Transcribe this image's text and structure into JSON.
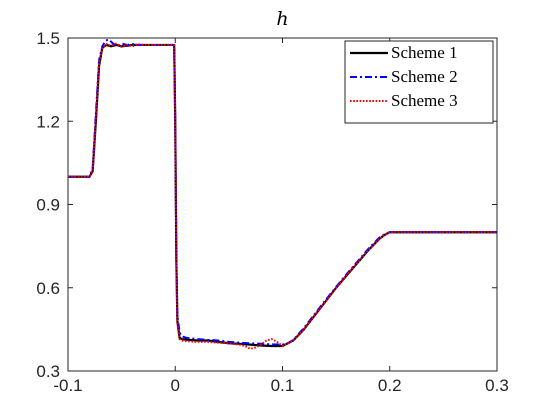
{
  "chart_data": {
    "type": "line",
    "title": "h",
    "xlabel": "",
    "ylabel": "",
    "xlim": [
      -0.1,
      0.3
    ],
    "ylim": [
      0.3,
      1.5
    ],
    "xticks": [
      -0.1,
      0,
      0.1,
      0.2,
      0.3
    ],
    "xtick_labels": [
      "-0.1",
      "0",
      "0.1",
      "0.2",
      "0.3"
    ],
    "yticks": [
      0.3,
      0.6,
      0.9,
      1.2,
      1.5
    ],
    "ytick_labels": [
      "0.3",
      "0.6",
      "0.9",
      "1.2",
      "1.5"
    ],
    "grid": false,
    "legend_position": "top-right",
    "series": [
      {
        "name": "Scheme 1",
        "color": "#000000",
        "style": "solid",
        "x": [
          -0.1,
          -0.08,
          -0.077,
          -0.074,
          -0.071,
          -0.068,
          -0.064,
          -0.06,
          -0.055,
          -0.05,
          -0.045,
          -0.04,
          -0.035,
          -0.03,
          -0.02,
          -0.01,
          -0.001,
          0.0,
          0.001,
          0.002,
          0.004,
          0.006,
          0.01,
          0.02,
          0.03,
          0.04,
          0.05,
          0.06,
          0.07,
          0.08,
          0.09,
          0.1,
          0.105,
          0.11,
          0.12,
          0.13,
          0.14,
          0.15,
          0.16,
          0.17,
          0.18,
          0.19,
          0.195,
          0.2,
          0.21,
          0.22,
          0.25,
          0.3
        ],
        "y": [
          1.0,
          1.0,
          1.02,
          1.2,
          1.4,
          1.465,
          1.475,
          1.47,
          1.475,
          1.47,
          1.472,
          1.475,
          1.475,
          1.475,
          1.475,
          1.475,
          1.475,
          1.2,
          0.7,
          0.48,
          0.42,
          0.415,
          0.413,
          0.41,
          0.41,
          0.405,
          0.4,
          0.398,
          0.395,
          0.392,
          0.39,
          0.39,
          0.4,
          0.41,
          0.45,
          0.5,
          0.55,
          0.6,
          0.645,
          0.69,
          0.735,
          0.775,
          0.79,
          0.8,
          0.8,
          0.8,
          0.8,
          0.8
        ]
      },
      {
        "name": "Scheme 2",
        "color": "#0000ff",
        "style": "dashdot",
        "x": [
          -0.1,
          -0.08,
          -0.077,
          -0.074,
          -0.071,
          -0.068,
          -0.065,
          -0.062,
          -0.058,
          -0.054,
          -0.05,
          -0.045,
          -0.04,
          -0.035,
          -0.03,
          -0.02,
          -0.01,
          -0.001,
          0.0,
          0.001,
          0.002,
          0.004,
          0.006,
          0.01,
          0.02,
          0.03,
          0.04,
          0.05,
          0.06,
          0.07,
          0.08,
          0.09,
          0.1,
          0.105,
          0.11,
          0.12,
          0.13,
          0.14,
          0.15,
          0.16,
          0.17,
          0.18,
          0.19,
          0.195,
          0.2,
          0.21,
          0.22,
          0.25,
          0.3
        ],
        "y": [
          1.0,
          1.0,
          1.03,
          1.23,
          1.42,
          1.47,
          1.49,
          1.495,
          1.48,
          1.47,
          1.48,
          1.475,
          1.478,
          1.475,
          1.475,
          1.475,
          1.475,
          1.475,
          1.2,
          0.72,
          0.5,
          0.44,
          0.425,
          0.42,
          0.415,
          0.412,
          0.41,
          0.405,
          0.402,
          0.4,
          0.398,
          0.396,
          0.395,
          0.4,
          0.412,
          0.455,
          0.505,
          0.555,
          0.603,
          0.65,
          0.695,
          0.74,
          0.78,
          0.792,
          0.8,
          0.8,
          0.8,
          0.8,
          0.8
        ]
      },
      {
        "name": "Scheme 3",
        "color": "#ff0000",
        "style": "dotted",
        "x": [
          -0.1,
          -0.08,
          -0.077,
          -0.074,
          -0.071,
          -0.068,
          -0.064,
          -0.06,
          -0.055,
          -0.05,
          -0.045,
          -0.04,
          -0.035,
          -0.03,
          -0.02,
          -0.01,
          -0.001,
          0.0,
          0.001,
          0.002,
          0.004,
          0.006,
          0.01,
          0.02,
          0.03,
          0.04,
          0.05,
          0.06,
          0.065,
          0.07,
          0.075,
          0.08,
          0.085,
          0.09,
          0.095,
          0.1,
          0.105,
          0.11,
          0.12,
          0.13,
          0.14,
          0.15,
          0.16,
          0.17,
          0.18,
          0.19,
          0.195,
          0.2,
          0.21,
          0.22,
          0.25,
          0.3
        ],
        "y": [
          1.0,
          1.0,
          1.02,
          1.21,
          1.41,
          1.465,
          1.478,
          1.472,
          1.48,
          1.468,
          1.475,
          1.47,
          1.478,
          1.475,
          1.475,
          1.475,
          1.475,
          1.2,
          0.7,
          0.47,
          0.415,
          0.41,
          0.408,
          0.405,
          0.405,
          0.402,
          0.4,
          0.395,
          0.39,
          0.38,
          0.385,
          0.395,
          0.41,
          0.415,
          0.405,
          0.39,
          0.4,
          0.41,
          0.45,
          0.5,
          0.55,
          0.6,
          0.645,
          0.69,
          0.735,
          0.775,
          0.79,
          0.8,
          0.8,
          0.8,
          0.8,
          0.8
        ]
      }
    ]
  }
}
